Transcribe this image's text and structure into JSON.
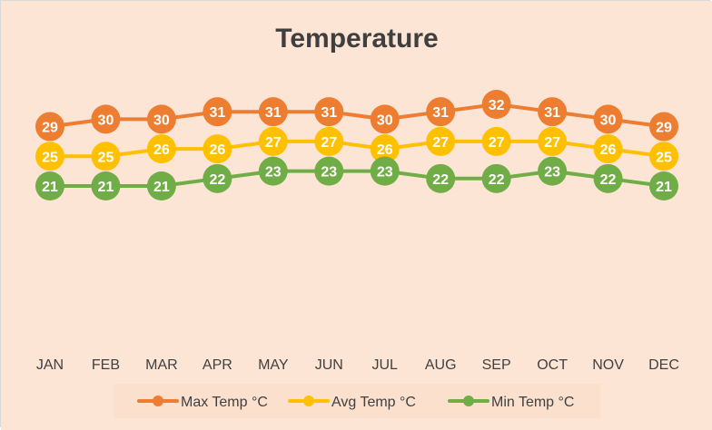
{
  "background_color": "#fde5d5",
  "chart_data": {
    "type": "line",
    "title": "Temperature",
    "categories": [
      "JAN",
      "FEB",
      "MAR",
      "APR",
      "MAY",
      "JUN",
      "JUL",
      "AUG",
      "SEP",
      "OCT",
      "NOV",
      "DEC"
    ],
    "series": [
      {
        "name": "Max Temp °C",
        "color": "#ed7d31",
        "values": [
          29,
          30,
          30,
          31,
          31,
          31,
          30,
          31,
          32,
          31,
          30,
          29
        ]
      },
      {
        "name": "Avg Temp °C",
        "color": "#ffc000",
        "values": [
          25,
          25,
          26,
          26,
          27,
          27,
          26,
          27,
          27,
          27,
          26,
          25
        ]
      },
      {
        "name": "Min Temp °C",
        "color": "#70ad47",
        "values": [
          21,
          21,
          21,
          22,
          23,
          23,
          23,
          22,
          22,
          23,
          22,
          21
        ]
      }
    ],
    "xlabel": "",
    "ylabel": "",
    "grid": false,
    "legend_position": "bottom"
  }
}
